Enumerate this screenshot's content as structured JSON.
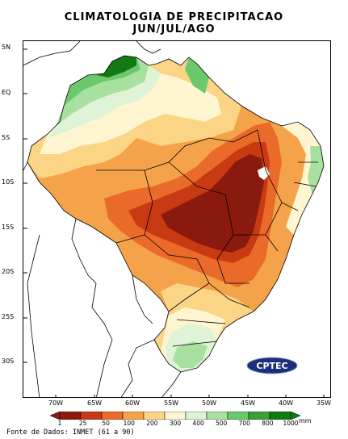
{
  "title_line1": "CLIMATOLOGIA DE PRECIPITACAO",
  "title_line2": "JUN/JUL/AGO",
  "lat_labels": [
    "5N",
    "EQ",
    "5S",
    "10S",
    "15S",
    "20S",
    "25S",
    "30S"
  ],
  "lon_labels": [
    "70W",
    "65W",
    "60W",
    "55W",
    "50W",
    "45W",
    "40W",
    "35W"
  ],
  "legend": {
    "values": [
      "1",
      "25",
      "50",
      "100",
      "200",
      "300",
      "400",
      "500",
      "700",
      "800",
      "1000"
    ],
    "colors": [
      "#8b1a0e",
      "#c83a12",
      "#ea6a2a",
      "#f5a34a",
      "#fbd585",
      "#fff5d0",
      "#dff3d6",
      "#a8e0a0",
      "#6cc86c",
      "#3aa03a",
      "#127a12"
    ],
    "unit": "mm"
  },
  "source_text": "Fonte de Dados: INMET (61 a 90)",
  "logo_text": "CPTEC"
}
